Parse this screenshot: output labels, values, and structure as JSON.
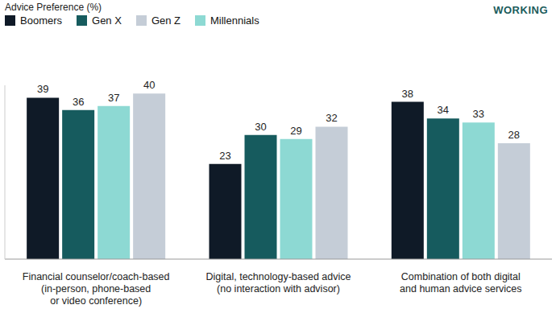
{
  "chart_data": {
    "type": "bar",
    "title": "Advice Preference (%)",
    "annotation": "WORKING",
    "categories": [
      "Financial counselor/coach-based\n(in-person, phone-based\nor video conference)",
      "Digital, technology-based advice\n(no interaction with advisor)",
      "Combination of both digital\nand human advice services"
    ],
    "series": [
      {
        "name": "Boomers",
        "color": "#0f1a27",
        "values": [
          39,
          23,
          38
        ]
      },
      {
        "name": "Gen X",
        "color": "#165b5e",
        "values": [
          36,
          30,
          34
        ]
      },
      {
        "name": "Millennials",
        "color": "#8dd9d3",
        "values": [
          37,
          29,
          33
        ]
      },
      {
        "name": "Gen Z",
        "color": "#c5cdd7",
        "values": [
          40,
          32,
          28
        ]
      }
    ],
    "ylim": [
      0,
      42
    ],
    "grid": false,
    "legend": "top-left",
    "data_labels": true,
    "tick_labels": "x"
  }
}
